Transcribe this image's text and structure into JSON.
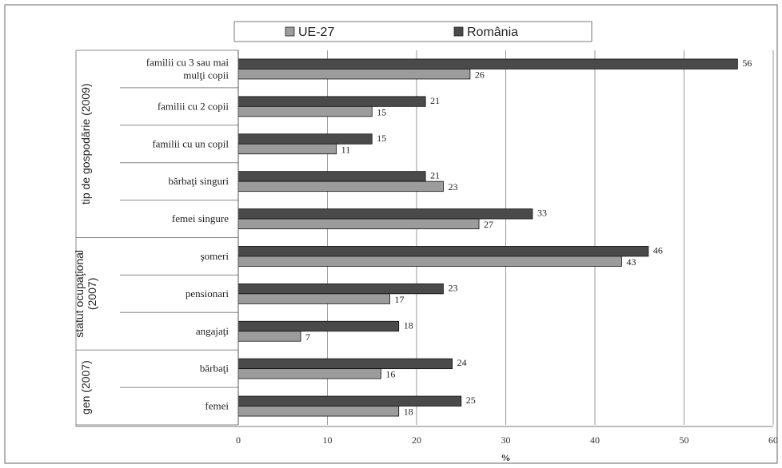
{
  "chart_data": {
    "type": "bar",
    "orientation": "horizontal",
    "categories": [
      "familii cu 3 sau mai|mulţi copii",
      "familii cu 2 copii",
      "familii cu un copil",
      "bărbaţi singuri",
      "femei singure",
      "şomeri",
      "pensionari",
      "angajaţi",
      "bărbaţi",
      "femei"
    ],
    "series": [
      {
        "name": "România",
        "values": [
          56,
          21,
          15,
          21,
          33,
          46,
          23,
          18,
          24,
          25
        ]
      },
      {
        "name": "UE-27",
        "values": [
          26,
          15,
          11,
          23,
          27,
          43,
          17,
          7,
          16,
          18
        ]
      }
    ],
    "legend_order": [
      "UE-27",
      "România"
    ],
    "groups": [
      {
        "label": "tip de gospodărie (2009)",
        "categories": 5
      },
      {
        "label": "statut ocupaţional|(2007)",
        "categories": 3
      },
      {
        "label": "gen (2007)",
        "categories": 2
      }
    ],
    "xlim": [
      0,
      60
    ],
    "xticks": [
      0,
      10,
      20,
      30,
      40,
      50,
      60
    ],
    "xlabel": "%",
    "grid": true,
    "legend_position": "top",
    "colors": {
      "România": "#4a4a4a",
      "UE-27": "#9c9c9c",
      "grid": "#9a9a9a"
    }
  }
}
